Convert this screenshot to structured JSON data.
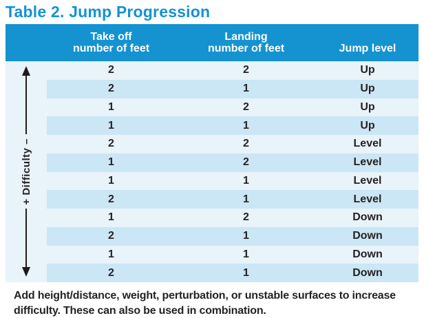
{
  "title": "Table 2. Jump Progression",
  "difficulty_axis_label": "+ Difficulty –",
  "table": {
    "headers": {
      "takeoff": {
        "line1": "Take off",
        "line2": "number of feet"
      },
      "landing": {
        "line1": "Landing",
        "line2": "number of feet"
      },
      "jump_level": "Jump level"
    },
    "rows": [
      {
        "takeoff": "2",
        "landing": "2",
        "level": "Up"
      },
      {
        "takeoff": "2",
        "landing": "1",
        "level": "Up"
      },
      {
        "takeoff": "1",
        "landing": "2",
        "level": "Up"
      },
      {
        "takeoff": "1",
        "landing": "1",
        "level": "Up"
      },
      {
        "takeoff": "2",
        "landing": "2",
        "level": "Level"
      },
      {
        "takeoff": "1",
        "landing": "2",
        "level": "Level"
      },
      {
        "takeoff": "1",
        "landing": "1",
        "level": "Level"
      },
      {
        "takeoff": "2",
        "landing": "1",
        "level": "Level"
      },
      {
        "takeoff": "1",
        "landing": "2",
        "level": "Down"
      },
      {
        "takeoff": "2",
        "landing": "1",
        "level": "Down"
      },
      {
        "takeoff": "1",
        "landing": "1",
        "level": "Down"
      },
      {
        "takeoff": "2",
        "landing": "1",
        "level": "Down"
      }
    ]
  },
  "footnote": "Add height/distance, weight, perturbation, or unstable surfaces to increase difficulty. These can also be used in combination.",
  "colors": {
    "accent_blue": "#1592d0",
    "row_light": "#e8f3fa",
    "row_stripe": "#cbe6f5",
    "text_dark": "#262223"
  }
}
